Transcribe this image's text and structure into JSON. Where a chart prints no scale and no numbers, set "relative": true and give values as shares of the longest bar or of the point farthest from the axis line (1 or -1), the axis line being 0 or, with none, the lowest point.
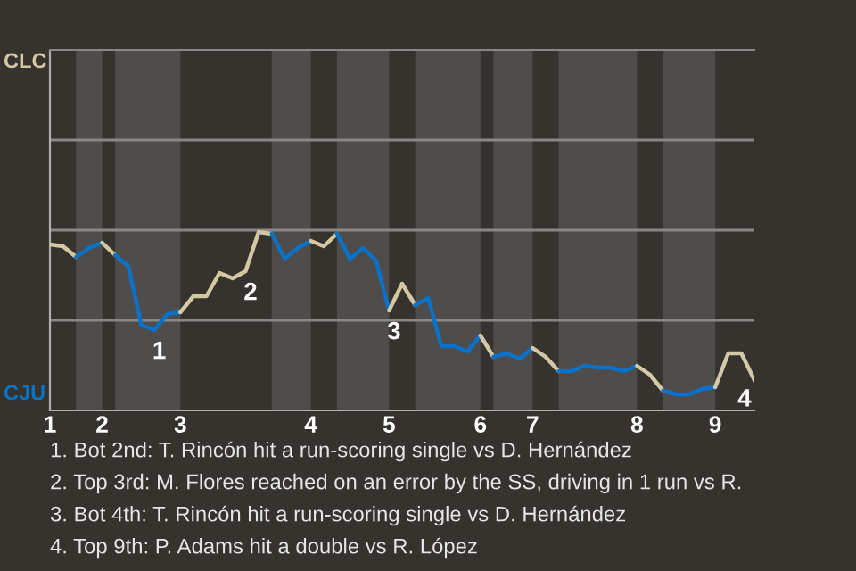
{
  "chart_data": {
    "type": "line",
    "relative": true,
    "ref_lines": [
      {
        "axis": "y",
        "value": 0.505,
        "color": "#8a8885"
      },
      {
        "axis": "y",
        "value": 1.01,
        "color": "#8a8885"
      },
      {
        "axis": "y",
        "value": 1.515,
        "color": "#8a8885"
      }
    ],
    "categories": [
      "1",
      null,
      null,
      null,
      "2",
      null,
      null,
      null,
      null,
      null,
      "3",
      null,
      null,
      null,
      null,
      null,
      null,
      null,
      null,
      null,
      "4",
      null,
      null,
      null,
      null,
      null,
      "5",
      null,
      null,
      null,
      null,
      null,
      null,
      "6",
      null,
      null,
      null,
      "7",
      null,
      null,
      null,
      null,
      null,
      null,
      null,
      "8",
      null,
      null,
      null,
      null,
      null,
      "9",
      null,
      null,
      null
    ],
    "series": [
      {
        "color": "#d3c8a0",
        "values": [
          0.93,
          0.92,
          0.86,
          null,
          null,
          null,
          null,
          null,
          null,
          null,
          null,
          null,
          null,
          null,
          null,
          null,
          null,
          null,
          null,
          null,
          null,
          null,
          null,
          null,
          null,
          null,
          null,
          null,
          null,
          null,
          null,
          null,
          null,
          null,
          null,
          null,
          null,
          null,
          null,
          null,
          null,
          null,
          null,
          null,
          null,
          null,
          null,
          null,
          null,
          null,
          null,
          null,
          null,
          null,
          null
        ]
      },
      {
        "color": "#0b72c6",
        "values": [
          null,
          null,
          0.86,
          0.91,
          0.94,
          null,
          null,
          null,
          null,
          null,
          null,
          null,
          null,
          null,
          null,
          null,
          null,
          null,
          null,
          null,
          null,
          null,
          null,
          null,
          null,
          null,
          null,
          null,
          null,
          null,
          null,
          null,
          null,
          null,
          null,
          null,
          null,
          null,
          null,
          null,
          null,
          null,
          null,
          null,
          null,
          null,
          null,
          null,
          null,
          null,
          null,
          null,
          null,
          null,
          null
        ]
      },
      {
        "color": "#d3c8a1",
        "values": [
          null,
          null,
          null,
          null,
          0.94,
          0.87,
          null,
          null,
          null,
          null,
          null,
          null,
          null,
          null,
          null,
          null,
          null,
          null,
          null,
          null,
          null,
          null,
          null,
          null,
          null,
          null,
          null,
          null,
          null,
          null,
          null,
          null,
          null,
          null,
          null,
          null,
          null,
          null,
          null,
          null,
          null,
          null,
          null,
          null,
          null,
          null,
          null,
          null,
          null,
          null,
          null,
          null,
          null,
          null,
          null
        ]
      },
      {
        "color": "#0b72c7",
        "values": [
          null,
          null,
          null,
          null,
          null,
          0.87,
          0.81,
          0.48,
          0.45,
          0.54,
          0.55,
          null,
          null,
          null,
          null,
          null,
          null,
          null,
          null,
          null,
          null,
          null,
          null,
          null,
          null,
          null,
          null,
          null,
          null,
          null,
          null,
          null,
          null,
          null,
          null,
          null,
          null,
          null,
          null,
          null,
          null,
          null,
          null,
          null,
          null,
          null,
          null,
          null,
          null,
          null,
          null,
          null,
          null,
          null,
          null
        ]
      },
      {
        "color": "#d3c8a2",
        "values": [
          null,
          null,
          null,
          null,
          null,
          null,
          null,
          null,
          null,
          null,
          0.55,
          0.64,
          0.64,
          0.77,
          0.74,
          0.78,
          1,
          0.99,
          null,
          null,
          null,
          null,
          null,
          null,
          null,
          null,
          null,
          null,
          null,
          null,
          null,
          null,
          null,
          null,
          null,
          null,
          null,
          null,
          null,
          null,
          null,
          null,
          null,
          null,
          null,
          null,
          null,
          null,
          null,
          null,
          null,
          null,
          null,
          null,
          null
        ]
      },
      {
        "color": "#0b72c8",
        "values": [
          null,
          null,
          null,
          null,
          null,
          null,
          null,
          null,
          null,
          null,
          null,
          null,
          null,
          null,
          null,
          null,
          null,
          0.99,
          0.85,
          0.91,
          0.95,
          null,
          null,
          null,
          null,
          null,
          null,
          null,
          null,
          null,
          null,
          null,
          null,
          null,
          null,
          null,
          null,
          null,
          null,
          null,
          null,
          null,
          null,
          null,
          null,
          null,
          null,
          null,
          null,
          null,
          null,
          null,
          null,
          null,
          null
        ]
      },
      {
        "color": "#d3c8a3",
        "values": [
          null,
          null,
          null,
          null,
          null,
          null,
          null,
          null,
          null,
          null,
          null,
          null,
          null,
          null,
          null,
          null,
          null,
          null,
          null,
          null,
          0.95,
          0.92,
          0.99,
          null,
          null,
          null,
          null,
          null,
          null,
          null,
          null,
          null,
          null,
          null,
          null,
          null,
          null,
          null,
          null,
          null,
          null,
          null,
          null,
          null,
          null,
          null,
          null,
          null,
          null,
          null,
          null,
          null,
          null,
          null,
          null
        ]
      },
      {
        "color": "#0b72c9",
        "values": [
          null,
          null,
          null,
          null,
          null,
          null,
          null,
          null,
          null,
          null,
          null,
          null,
          null,
          null,
          null,
          null,
          null,
          null,
          null,
          null,
          null,
          null,
          0.99,
          0.85,
          0.91,
          0.84,
          0.56,
          null,
          null,
          null,
          null,
          null,
          null,
          null,
          null,
          null,
          null,
          null,
          null,
          null,
          null,
          null,
          null,
          null,
          null,
          null,
          null,
          null,
          null,
          null,
          null,
          null,
          null,
          null,
          null
        ]
      },
      {
        "color": "#d3c8a4",
        "values": [
          null,
          null,
          null,
          null,
          null,
          null,
          null,
          null,
          null,
          null,
          null,
          null,
          null,
          null,
          null,
          null,
          null,
          null,
          null,
          null,
          null,
          null,
          null,
          null,
          null,
          null,
          0.56,
          0.71,
          0.59,
          null,
          null,
          null,
          null,
          null,
          null,
          null,
          null,
          null,
          null,
          null,
          null,
          null,
          null,
          null,
          null,
          null,
          null,
          null,
          null,
          null,
          null,
          null,
          null,
          null,
          null
        ]
      },
      {
        "color": "#0b72ca",
        "values": [
          null,
          null,
          null,
          null,
          null,
          null,
          null,
          null,
          null,
          null,
          null,
          null,
          null,
          null,
          null,
          null,
          null,
          null,
          null,
          null,
          null,
          null,
          null,
          null,
          null,
          null,
          null,
          null,
          0.59,
          0.63,
          0.36,
          0.36,
          0.33,
          0.42,
          null,
          null,
          null,
          null,
          null,
          null,
          null,
          null,
          null,
          null,
          null,
          null,
          null,
          null,
          null,
          null,
          null,
          null,
          null,
          null,
          null
        ]
      },
      {
        "color": "#d3c8a5",
        "values": [
          null,
          null,
          null,
          null,
          null,
          null,
          null,
          null,
          null,
          null,
          null,
          null,
          null,
          null,
          null,
          null,
          null,
          null,
          null,
          null,
          null,
          null,
          null,
          null,
          null,
          null,
          null,
          null,
          null,
          null,
          null,
          null,
          null,
          0.42,
          0.3,
          null,
          null,
          null,
          null,
          null,
          null,
          null,
          null,
          null,
          null,
          null,
          null,
          null,
          null,
          null,
          null,
          null,
          null,
          null,
          null
        ]
      },
      {
        "color": "#0b72cb",
        "values": [
          null,
          null,
          null,
          null,
          null,
          null,
          null,
          null,
          null,
          null,
          null,
          null,
          null,
          null,
          null,
          null,
          null,
          null,
          null,
          null,
          null,
          null,
          null,
          null,
          null,
          null,
          null,
          null,
          null,
          null,
          null,
          null,
          null,
          null,
          0.3,
          0.32,
          0.29,
          0.35,
          null,
          null,
          null,
          null,
          null,
          null,
          null,
          null,
          null,
          null,
          null,
          null,
          null,
          null,
          null,
          null,
          null
        ]
      },
      {
        "color": "#d3c8a6",
        "values": [
          null,
          null,
          null,
          null,
          null,
          null,
          null,
          null,
          null,
          null,
          null,
          null,
          null,
          null,
          null,
          null,
          null,
          null,
          null,
          null,
          null,
          null,
          null,
          null,
          null,
          null,
          null,
          null,
          null,
          null,
          null,
          null,
          null,
          null,
          null,
          null,
          null,
          0.35,
          0.3,
          0.22,
          null,
          null,
          null,
          null,
          null,
          null,
          null,
          null,
          null,
          null,
          null,
          null,
          null,
          null,
          null
        ]
      },
      {
        "color": "#0b72cc",
        "values": [
          null,
          null,
          null,
          null,
          null,
          null,
          null,
          null,
          null,
          null,
          null,
          null,
          null,
          null,
          null,
          null,
          null,
          null,
          null,
          null,
          null,
          null,
          null,
          null,
          null,
          null,
          null,
          null,
          null,
          null,
          null,
          null,
          null,
          null,
          null,
          null,
          null,
          null,
          null,
          0.22,
          0.22,
          0.25,
          0.24,
          0.24,
          0.22,
          0.25,
          null,
          null,
          null,
          null,
          null,
          null,
          null,
          null,
          null
        ]
      },
      {
        "color": "#d3c8a7",
        "values": [
          null,
          null,
          null,
          null,
          null,
          null,
          null,
          null,
          null,
          null,
          null,
          null,
          null,
          null,
          null,
          null,
          null,
          null,
          null,
          null,
          null,
          null,
          null,
          null,
          null,
          null,
          null,
          null,
          null,
          null,
          null,
          null,
          null,
          null,
          null,
          null,
          null,
          null,
          null,
          null,
          null,
          null,
          null,
          null,
          null,
          0.25,
          0.2,
          0.11,
          null,
          null,
          null,
          null,
          null,
          null,
          null
        ]
      },
      {
        "color": "#0b72cd",
        "values": [
          null,
          null,
          null,
          null,
          null,
          null,
          null,
          null,
          null,
          null,
          null,
          null,
          null,
          null,
          null,
          null,
          null,
          null,
          null,
          null,
          null,
          null,
          null,
          null,
          null,
          null,
          null,
          null,
          null,
          null,
          null,
          null,
          null,
          null,
          null,
          null,
          null,
          null,
          null,
          null,
          null,
          null,
          null,
          null,
          null,
          null,
          null,
          0.11,
          0.09,
          0.09,
          0.12,
          0.13,
          null,
          null,
          null
        ]
      },
      {
        "color": "#d3c8a8",
        "values": [
          null,
          null,
          null,
          null,
          null,
          null,
          null,
          null,
          null,
          null,
          null,
          null,
          null,
          null,
          null,
          null,
          null,
          null,
          null,
          null,
          null,
          null,
          null,
          null,
          null,
          null,
          null,
          null,
          null,
          null,
          null,
          null,
          null,
          null,
          null,
          null,
          null,
          null,
          null,
          null,
          null,
          null,
          null,
          null,
          null,
          null,
          null,
          null,
          null,
          null,
          null,
          0.13,
          0.32,
          0.32,
          0.17
        ]
      }
    ],
    "annotations": [
      "CLC",
      "CJU",
      {
        "text": "1",
        "y": 0.45
      },
      {
        "text": "2",
        "y": 0.78
      },
      {
        "text": "3",
        "y": 0.56
      },
      {
        "text": "4",
        "y": 0.17
      },
      "1. Bot 2nd: T. Rincón hit a run-scoring single vs D. Hernández",
      "2. Top 3rd: M. Flores reached on an error by the SS, driving in 1 run vs R.",
      "3. Bot 4th: T. Rincón hit a run-scoring single vs D. Hernández",
      "4. Top 9th: P. Adams hit a double vs R. López"
    ]
  }
}
